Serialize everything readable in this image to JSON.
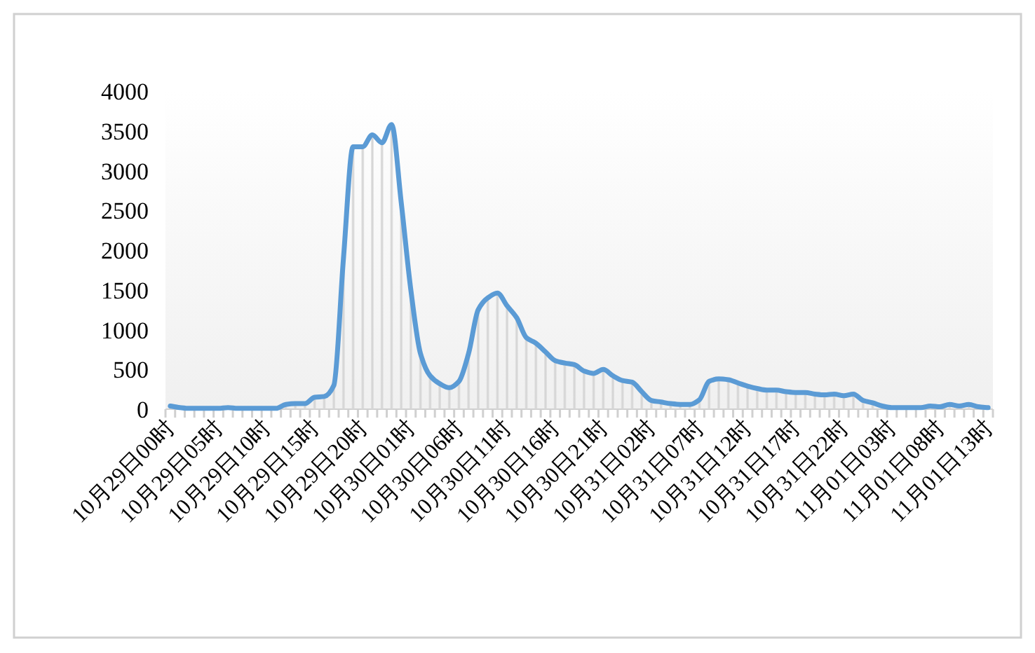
{
  "chart_data": {
    "type": "area",
    "categories": [
      "10月29日00时",
      null,
      null,
      null,
      null,
      "10月29日05时",
      null,
      null,
      null,
      null,
      "10月29日10时",
      null,
      null,
      null,
      null,
      "10月29日15时",
      null,
      null,
      null,
      null,
      "10月29日20时",
      null,
      null,
      null,
      null,
      "10月30日01时",
      null,
      null,
      null,
      null,
      "10月30日06时",
      null,
      null,
      null,
      null,
      "10月30日11时",
      null,
      null,
      null,
      null,
      "10月30日16时",
      null,
      null,
      null,
      null,
      "10月30日21时",
      null,
      null,
      null,
      null,
      "10月31日02时",
      null,
      null,
      null,
      null,
      "10月31日07时",
      null,
      null,
      null,
      null,
      "10月31日12时",
      null,
      null,
      null,
      null,
      "10月31日17时",
      null,
      null,
      null,
      null,
      "10月31日22时",
      null,
      null,
      null,
      null,
      "11月01日03时",
      null,
      null,
      null,
      null,
      "11月01日08时",
      null,
      null,
      null,
      null,
      "11月01日13时"
    ],
    "series": [
      {
        "color": "#5b9bd5",
        "values": [
          40,
          20,
          10,
          10,
          10,
          10,
          20,
          10,
          10,
          10,
          10,
          10,
          60,
          70,
          70,
          150,
          160,
          300,
          1900,
          3300,
          3300,
          3450,
          3350,
          3580,
          2600,
          1500,
          700,
          420,
          320,
          270,
          350,
          700,
          1250,
          1400,
          1460,
          1300,
          1150,
          900,
          830,
          720,
          610,
          580,
          560,
          480,
          450,
          500,
          420,
          360,
          340,
          220,
          110,
          90,
          70,
          60,
          60,
          120,
          350,
          380,
          370,
          330,
          290,
          260,
          240,
          240,
          220,
          210,
          210,
          190,
          180,
          190,
          170,
          190,
          110,
          80,
          40,
          20,
          20,
          20,
          20,
          40,
          30,
          60,
          40,
          60,
          30,
          20
        ]
      }
    ],
    "ylim": [
      0,
      4000
    ],
    "yticks": [
      0,
      500,
      1000,
      1500,
      2000,
      2500,
      3000,
      3500,
      4000
    ],
    "grid": false
  }
}
